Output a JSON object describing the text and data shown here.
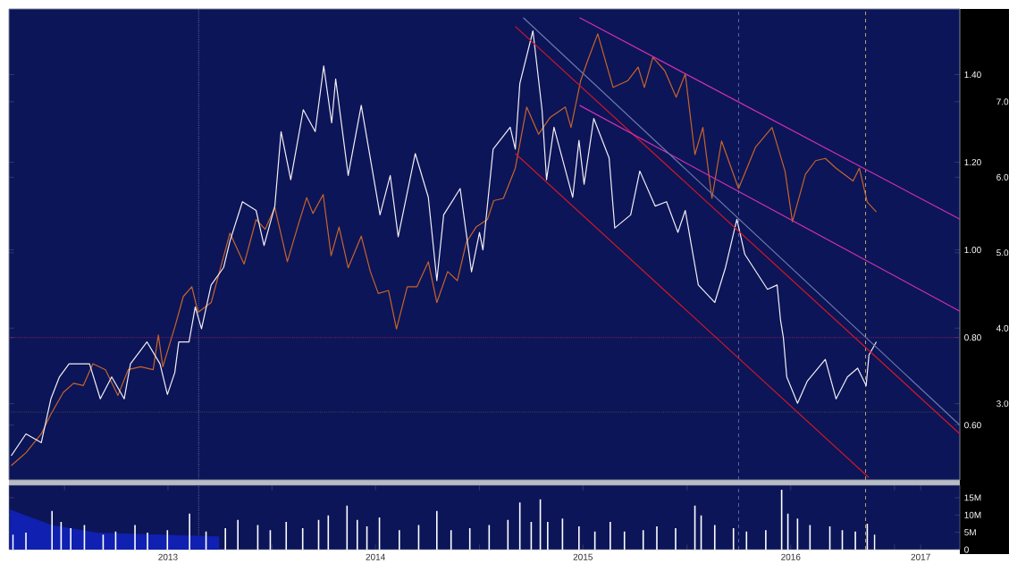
{
  "chart_data": [
    {
      "type": "line",
      "xlim": [
        "2012-09-25",
        "2017-04-26"
      ],
      "ylim": [
        0.475,
        1.55
      ],
      "yticks": [
        {
          "value": 0.6,
          "label": "0.60"
        },
        {
          "value": 0.8,
          "label": "0.80"
        },
        {
          "value": 1.0,
          "label": "1.00"
        },
        {
          "value": 1.2,
          "label": "1.20"
        },
        {
          "value": 1.4,
          "label": "1.40"
        }
      ],
      "y2lim": [
        1.99,
        8.23
      ],
      "y2ticks": [
        {
          "value": 3,
          "label": "3.0"
        },
        {
          "value": 4,
          "label": "4.0"
        },
        {
          "value": 5,
          "label": "5.0"
        },
        {
          "value": 6,
          "label": "6.0"
        },
        {
          "value": 7,
          "label": "7.0"
        }
      ],
      "tick_labels": "y",
      "series": [
        {
          "color": "#c8642a",
          "axis": "y2",
          "x": [
            "2012-09-29",
            "2012-10-25",
            "2012-11-21",
            "2012-12-08",
            "2012-12-30",
            "2013-01-17",
            "2013-02-03",
            "2013-02-20",
            "2013-03-14",
            "2013-04-05",
            "2013-04-23",
            "2013-05-15",
            "2013-06-06",
            "2013-06-15",
            "2013-06-23",
            "2013-07-15",
            "2013-07-29",
            "2013-08-13",
            "2013-08-24",
            "2013-09-16",
            "2013-10-19",
            "2013-11-13",
            "2013-12-04",
            "2013-12-20",
            "2014-01-06",
            "2014-01-28",
            "2014-02-17",
            "2014-03-03",
            "2014-03-14",
            "2014-04-01",
            "2014-04-15",
            "2014-04-29",
            "2014-05-15",
            "2014-06-07",
            "2014-06-23",
            "2014-07-07",
            "2014-07-25",
            "2014-08-08",
            "2014-08-27",
            "2014-09-13",
            "2014-10-03",
            "2014-10-18",
            "2014-11-06",
            "2014-11-23",
            "2014-12-09",
            "2014-12-26",
            "2015-01-15",
            "2015-01-26",
            "2015-02-12",
            "2015-03-05",
            "2015-03-25",
            "2015-04-15",
            "2015-05-05",
            "2015-06-01",
            "2015-06-11",
            "2015-06-28",
            "2015-07-10",
            "2015-07-28",
            "2015-08-24",
            "2015-09-19",
            "2015-10-07",
            "2015-10-18",
            "2015-11-02",
            "2015-11-23",
            "2015-12-13",
            "2015-12-29",
            "2016-01-15",
            "2016-01-29",
            "2016-02-14",
            "2016-03-02",
            "2016-04-01",
            "2016-05-01",
            "2016-05-30",
            "2016-06-22",
            "2016-07-05",
            "2016-07-28",
            "2016-08-15",
            "2016-09-01",
            "2016-09-20",
            "2016-10-20",
            "2016-10-31",
            "2016-11-14",
            "2016-11-30"
          ],
          "values": [
            2.18,
            2.35,
            2.6,
            2.86,
            3.15,
            3.27,
            3.24,
            3.53,
            3.45,
            3.11,
            3.45,
            3.49,
            3.45,
            3.91,
            3.49,
            4.04,
            4.42,
            4.55,
            4.21,
            4.34,
            5.26,
            4.85,
            5.44,
            5.31,
            5.6,
            4.88,
            5.39,
            5.73,
            5.52,
            5.77,
            4.96,
            5.34,
            4.8,
            5.22,
            4.75,
            4.46,
            4.5,
            3.99,
            4.55,
            4.55,
            4.88,
            4.34,
            4.75,
            4.63,
            5.14,
            5.34,
            5.44,
            5.69,
            5.72,
            6.12,
            6.93,
            6.57,
            6.79,
            6.93,
            6.66,
            7.28,
            7.54,
            7.9,
            7.19,
            7.28,
            7.46,
            7.19,
            7.59,
            7.41,
            7.06,
            7.37,
            6.3,
            6.66,
            5.72,
            6.48,
            5.85,
            6.4,
            6.66,
            6.08,
            5.41,
            6.04,
            6.22,
            6.25,
            6.12,
            5.95,
            6.12,
            5.67,
            5.54
          ]
        },
        {
          "color": "#f2eef2",
          "x": [
            "2012-09-29",
            "2012-10-25",
            "2012-11-21",
            "2012-12-08",
            "2012-12-23",
            "2013-01-09",
            "2013-01-23",
            "2013-02-14",
            "2013-03-05",
            "2013-03-25",
            "2013-04-16",
            "2013-04-27",
            "2013-05-26",
            "2013-06-18",
            "2013-07-01",
            "2013-07-14",
            "2013-07-21",
            "2013-08-08",
            "2013-08-19",
            "2013-08-30",
            "2013-09-16",
            "2013-10-08",
            "2013-10-19",
            "2013-11-10",
            "2013-12-04",
            "2013-12-18",
            "2014-01-06",
            "2014-01-17",
            "2014-02-03",
            "2014-02-25",
            "2014-03-18",
            "2014-04-02",
            "2014-04-16",
            "2014-04-23",
            "2014-05-15",
            "2014-06-07",
            "2014-07-10",
            "2014-07-28",
            "2014-08-11",
            "2014-09-10",
            "2014-10-03",
            "2014-10-18",
            "2014-10-30",
            "2014-11-28",
            "2014-12-18",
            "2015-01-01",
            "2015-01-07",
            "2015-01-25",
            "2015-02-24",
            "2015-03-05",
            "2015-03-13",
            "2015-04-05",
            "2015-04-21",
            "2015-04-29",
            "2015-05-12",
            "2015-06-14",
            "2015-06-25",
            "2015-07-04",
            "2015-07-21",
            "2015-08-17",
            "2015-08-27",
            "2015-09-24",
            "2015-10-10",
            "2015-11-06",
            "2015-11-26",
            "2015-12-16",
            "2015-12-29",
            "2016-01-21",
            "2016-02-19",
            "2016-03-09",
            "2016-03-29",
            "2016-04-12",
            "2016-05-22",
            "2016-06-08",
            "2016-06-14",
            "2016-06-19",
            "2016-06-25",
            "2016-07-14",
            "2016-07-31",
            "2016-09-01",
            "2016-09-20",
            "2016-10-10",
            "2016-10-28",
            "2016-11-12",
            "2016-11-17",
            "2016-11-30"
          ],
          "values": [
            0.53,
            0.58,
            0.56,
            0.66,
            0.71,
            0.74,
            0.74,
            0.74,
            0.66,
            0.71,
            0.66,
            0.74,
            0.79,
            0.74,
            0.67,
            0.72,
            0.79,
            0.79,
            0.87,
            0.82,
            0.92,
            0.96,
            1.02,
            1.11,
            1.09,
            1.01,
            1.1,
            1.27,
            1.16,
            1.32,
            1.27,
            1.42,
            1.29,
            1.39,
            1.17,
            1.33,
            1.08,
            1.17,
            1.03,
            1.22,
            1.12,
            0.93,
            1.08,
            1.14,
            0.95,
            1.04,
            1.0,
            1.23,
            1.28,
            1.23,
            1.38,
            1.5,
            1.32,
            1.16,
            1.28,
            1.12,
            1.25,
            1.15,
            1.3,
            1.21,
            1.05,
            1.08,
            1.18,
            1.1,
            1.11,
            1.04,
            1.09,
            0.92,
            0.88,
            0.96,
            1.07,
            0.99,
            0.91,
            0.92,
            0.84,
            0.8,
            0.71,
            0.65,
            0.7,
            0.75,
            0.66,
            0.71,
            0.73,
            0.69,
            0.76,
            0.79
          ]
        },
        {
          "type": "line",
          "color": "#d01828",
          "x": [
            "2015-03-05",
            "2017-04-26"
          ],
          "values": [
            1.51,
            0.58
          ]
        },
        {
          "type": "line",
          "color": "#d01828",
          "x": [
            "2015-03-05",
            "2016-11-17"
          ],
          "values": [
            1.22,
            0.48
          ]
        },
        {
          "type": "line",
          "color": "#d030b0",
          "x": [
            "2015-06-26",
            "2017-04-26"
          ],
          "values": [
            1.53,
            1.07
          ]
        },
        {
          "type": "line",
          "color": "#d030b0",
          "x": [
            "2015-06-26",
            "2017-04-26"
          ],
          "values": [
            1.33,
            0.86
          ]
        },
        {
          "type": "line",
          "color": "#6a78a8",
          "x": [
            "2015-03-19",
            "2017-04-26"
          ],
          "values": [
            1.53,
            0.6
          ]
        }
      ],
      "ref_lines": [
        {
          "axis": "x",
          "value": "2013-08-25",
          "color": "#5a6aa0",
          "line_style": "dotted"
        },
        {
          "axis": "x",
          "value": "2016-04-01",
          "color": "#5a6aa0",
          "line_style": "dashed"
        },
        {
          "axis": "x",
          "value": "2016-11-11",
          "color": "#b0a070",
          "line_style": "dashed"
        },
        {
          "axis": "y",
          "value": 0.8,
          "color": "#a0205a",
          "line_style": "dotted"
        },
        {
          "axis": "y",
          "value": 0.63,
          "color": "#607030",
          "line_style": "dotted"
        }
      ]
    },
    {
      "type": "bar",
      "xlim": [
        "2012-09-25",
        "2017-04-26"
      ],
      "ylim": [
        0,
        18.6
      ],
      "yticks": [
        0,
        {
          "value": 5,
          "label": "5M"
        },
        {
          "value": 10,
          "label": "10M"
        },
        {
          "value": 15,
          "label": "15M"
        }
      ],
      "xticks": [
        {
          "value": "2013-01-01",
          "label": null
        },
        {
          "value": "2013-07-02",
          "label": "2013"
        },
        {
          "value": "2014-01-01",
          "label": null
        },
        {
          "value": "2014-07-02",
          "label": "2014"
        },
        {
          "value": "2015-01-01",
          "label": null
        },
        {
          "value": "2015-07-02",
          "label": "2015"
        },
        {
          "value": "2016-01-01",
          "label": null
        },
        {
          "value": "2016-07-02",
          "label": "2016"
        },
        {
          "value": "2017-01-01",
          "label": null
        },
        {
          "value": "2017-02-16",
          "label": "2017"
        }
      ],
      "series": [
        {
          "type": "area",
          "color": "#1020b0",
          "x": [
            "2012-09-27",
            "2012-10-14",
            "2012-12-10",
            "2013-02-27",
            "2013-06-20",
            "2013-09-30"
          ],
          "values": [
            11.6,
            10.5,
            7.1,
            4.9,
            4.3,
            3.8
          ]
        },
        {
          "color": "#ffffff",
          "x": [
            "2012-10-02",
            "2012-10-25",
            "2012-12-10",
            "2012-12-26",
            "2013-01-12",
            "2013-02-05",
            "2013-03-10",
            "2013-04-01",
            "2013-05-05",
            "2013-05-27",
            "2013-07-01",
            "2013-08-09",
            "2013-09-07",
            "2013-10-11",
            "2013-11-02",
            "2013-12-07",
            "2013-12-29",
            "2014-01-26",
            "2014-02-24",
            "2014-03-24",
            "2014-04-10",
            "2014-05-13",
            "2014-05-31",
            "2014-06-17",
            "2014-07-09",
            "2014-08-13",
            "2014-09-16",
            "2014-10-18",
            "2014-11-12",
            "2014-12-15",
            "2015-01-18",
            "2015-02-20",
            "2015-03-13",
            "2015-04-02",
            "2015-04-18",
            "2015-05-01",
            "2015-05-27",
            "2015-06-25",
            "2015-07-23",
            "2015-08-19",
            "2015-09-13",
            "2015-10-16",
            "2015-11-09",
            "2015-12-12",
            "2016-01-15",
            "2016-01-26",
            "2016-02-19",
            "2016-03-23",
            "2016-04-15",
            "2016-05-19",
            "2016-06-16",
            "2016-06-27",
            "2016-07-14",
            "2016-08-05",
            "2016-09-09",
            "2016-10-01",
            "2016-10-24",
            "2016-11-14",
            "2016-11-27"
          ],
          "values": [
            4.3,
            4.9,
            11.2,
            8.0,
            6.2,
            7.1,
            4.3,
            5.2,
            7.1,
            4.9,
            5.6,
            10.4,
            5.2,
            6.2,
            8.6,
            7.1,
            5.6,
            8.0,
            6.2,
            8.6,
            9.9,
            12.7,
            8.6,
            6.7,
            9.3,
            5.6,
            7.1,
            11.2,
            5.6,
            6.2,
            7.1,
            8.6,
            13.6,
            8.0,
            14.5,
            8.0,
            9.0,
            6.7,
            5.2,
            8.0,
            5.2,
            5.6,
            6.7,
            6.2,
            12.7,
            9.9,
            7.1,
            6.2,
            5.2,
            5.6,
            17.3,
            10.4,
            9.0,
            7.1,
            6.7,
            5.6,
            5.2,
            7.5,
            4.3
          ]
        }
      ],
      "ref_lines": [
        {
          "axis": "x",
          "value": "2013-08-25",
          "color": "#5a6aa0",
          "line_style": "dotted"
        },
        {
          "axis": "x",
          "value": "2016-04-01",
          "color": "#5a6aa0",
          "line_style": "dashed"
        },
        {
          "axis": "x",
          "value": "2016-11-11",
          "color": "#b0a070",
          "line_style": "dashed"
        }
      ]
    }
  ]
}
